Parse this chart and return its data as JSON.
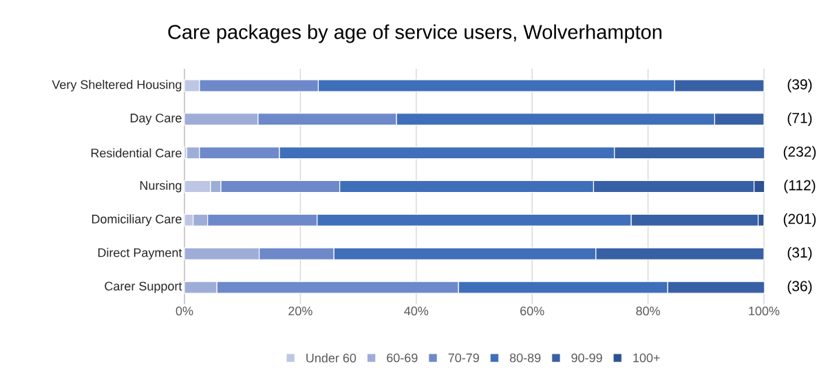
{
  "chart_data": {
    "type": "bar",
    "orientation": "horizontal",
    "stacked": true,
    "title": "Care packages by age of service users, Wolverhampton",
    "categories": [
      "Very Sheltered Housing",
      "Day Care",
      "Residential Care",
      "Nursing",
      "Domiciliary Care",
      "Direct Payment",
      "Carer Support"
    ],
    "series": [
      {
        "name": "Under 60",
        "color": "#bdc7e4",
        "values": [
          2.6,
          null,
          0.4,
          4.5,
          1.5,
          null,
          null
        ]
      },
      {
        "name": "60-69",
        "color": "#9eadd8",
        "values": [
          null,
          12.7,
          2.2,
          1.8,
          2.5,
          12.9,
          5.6
        ]
      },
      {
        "name": "70-79",
        "color": "#6e89ca",
        "values": [
          20.5,
          23.9,
          13.8,
          20.5,
          18.9,
          12.9,
          41.7
        ]
      },
      {
        "name": "80-89",
        "color": "#3f6fba",
        "values": [
          61.5,
          54.9,
          57.8,
          43.8,
          54.2,
          45.2,
          36.1
        ]
      },
      {
        "name": "90-99",
        "color": "#3860a5",
        "values": [
          15.4,
          8.5,
          25.9,
          27.7,
          21.9,
          29.0,
          16.7
        ]
      },
      {
        "name": "100+",
        "color": "#2e5291",
        "values": [
          null,
          null,
          null,
          1.8,
          1.0,
          null,
          null
        ]
      }
    ],
    "xlim": [
      0,
      100
    ],
    "xticks": [
      {
        "value": 0,
        "label": "0%"
      },
      {
        "value": 20,
        "label": "20%"
      },
      {
        "value": 40,
        "label": "40%"
      },
      {
        "value": 60,
        "label": "60%"
      },
      {
        "value": 80,
        "label": "80%"
      },
      {
        "value": 100,
        "label": "100%"
      }
    ],
    "grid": "x",
    "legend": "bottom",
    "annotations": [
      "(39)",
      "(71)",
      "(232)",
      "(112)",
      "(201)",
      "(31)",
      "(36)"
    ]
  }
}
